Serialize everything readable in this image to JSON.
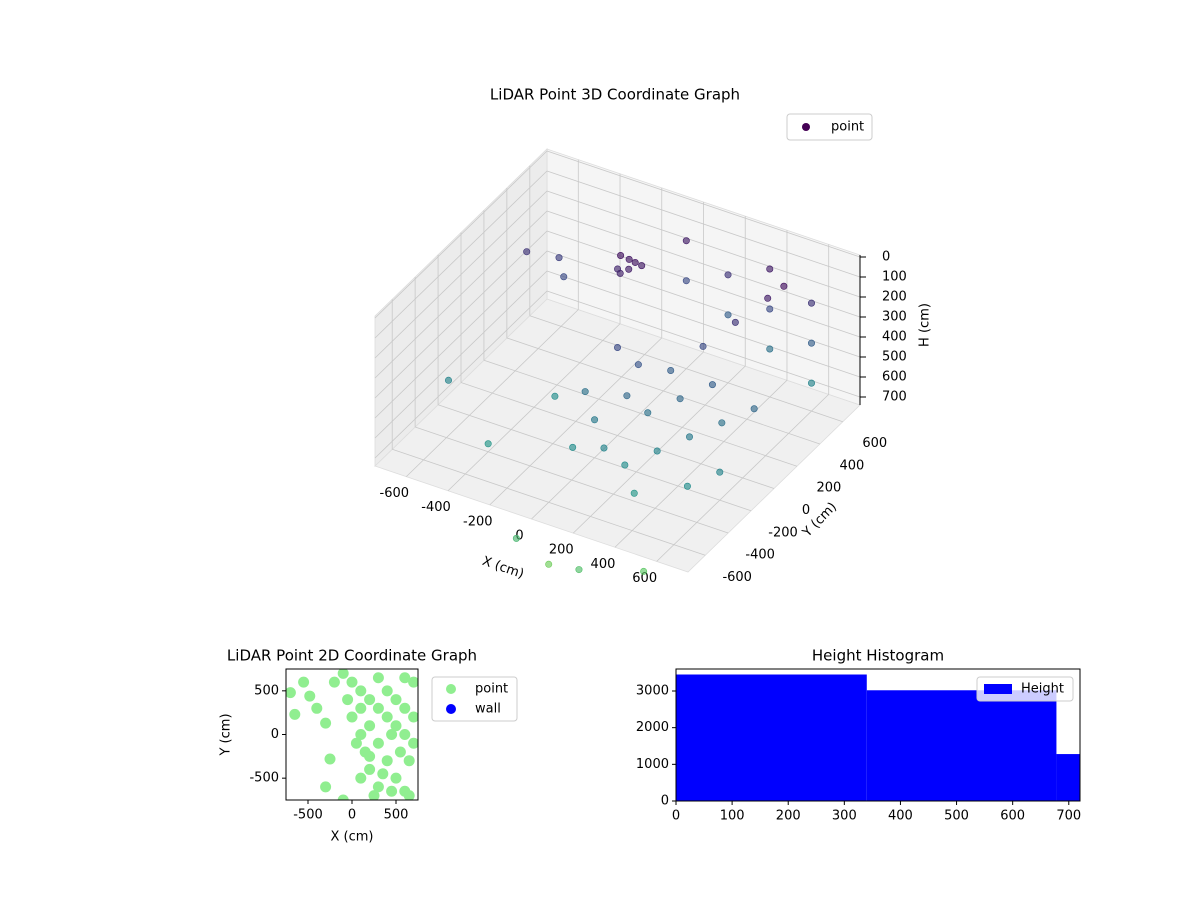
{
  "chart_data": [
    {
      "type": "scatter3d",
      "title": "LiDAR Point 3D Coordinate Graph",
      "xlabel": "X (cm)",
      "ylabel": "Y (cm)",
      "zlabel": "H (cm)",
      "xlim": [
        -750,
        750
      ],
      "ylim": [
        -750,
        750
      ],
      "zlim": [
        740,
        -10
      ],
      "xticks": [
        -600,
        -400,
        -200,
        0,
        200,
        400,
        600
      ],
      "yticks": [
        -600,
        -400,
        -200,
        0,
        200,
        400,
        600
      ],
      "zticks": [
        0,
        100,
        200,
        300,
        400,
        500,
        600,
        700
      ],
      "colormap": "viridis",
      "legend": "upper right",
      "grid": true,
      "series": [
        {
          "name": "point",
          "color": "#440154",
          "x": [
            0,
            0,
            200,
            200,
            400,
            400,
            400,
            600,
            600,
            600,
            -150,
            -120,
            -100,
            -80,
            -130,
            -60,
            -170,
            0,
            100,
            200,
            300,
            400,
            500,
            550,
            100,
            200,
            300,
            400,
            0,
            100,
            200,
            300,
            400,
            500,
            600,
            -100,
            -50,
            300,
            500,
            600,
            -600,
            -500,
            -450,
            -700,
            -400,
            -300,
            -100,
            200,
            400,
            0
          ],
          "y": [
            600,
            600,
            600,
            600,
            600,
            600,
            600,
            600,
            600,
            600,
            300,
            320,
            280,
            300,
            260,
            320,
            310,
            0,
            0,
            100,
            200,
            300,
            400,
            450,
            -100,
            -100,
            0,
            100,
            -200,
            -300,
            -300,
            -200,
            -100,
            0,
            100,
            -100,
            -300,
            -400,
            -300,
            -200,
            300,
            400,
            350,
            -200,
            -400,
            0,
            -700,
            -700,
            -500,
            -600
          ],
          "z": [
            100,
            300,
            200,
            400,
            100,
            300,
            500,
            200,
            400,
            600,
            60,
            80,
            100,
            70,
            120,
            90,
            140,
            300,
            350,
            400,
            300,
            200,
            100,
            50,
            450,
            500,
            450,
            400,
            550,
            600,
            650,
            600,
            550,
            500,
            450,
            500,
            650,
            700,
            650,
            600,
            200,
            250,
            300,
            600,
            700,
            650,
            900,
            950,
            1000,
            1050
          ]
        }
      ]
    },
    {
      "type": "scatter",
      "title": "LiDAR Point 2D Coordinate Graph",
      "xlabel": "X (cm)",
      "ylabel": "Y (cm)",
      "xlim": [
        -750,
        750
      ],
      "ylim": [
        -750,
        750
      ],
      "xticks": [
        -500,
        0,
        500
      ],
      "yticks": [
        -500,
        0,
        500
      ],
      "legend": "outside right",
      "series": [
        {
          "name": "point",
          "color": "#90ee90",
          "x": [
            -700,
            -650,
            -550,
            -480,
            -400,
            -300,
            -250,
            -200,
            -300,
            -100,
            -100,
            0,
            100,
            200,
            300,
            400,
            500,
            600,
            700,
            100,
            200,
            300,
            400,
            500,
            600,
            100,
            150,
            200,
            300,
            0,
            50,
            250,
            400,
            500,
            600,
            700,
            650,
            700,
            -50,
            350,
            450,
            550,
            300,
            600,
            200,
            100,
            450,
            650
          ],
          "y": [
            480,
            230,
            600,
            440,
            300,
            130,
            -280,
            600,
            -600,
            -750,
            700,
            600,
            500,
            400,
            300,
            200,
            100,
            0,
            -100,
            300,
            100,
            -100,
            -300,
            -500,
            -650,
            0,
            -200,
            -400,
            -600,
            200,
            -100,
            -700,
            500,
            400,
            300,
            600,
            -300,
            200,
            400,
            -450,
            0,
            -200,
            650,
            650,
            -250,
            -500,
            -650,
            -700
          ]
        },
        {
          "name": "wall",
          "color": "#0000ff",
          "x": [],
          "y": []
        }
      ]
    },
    {
      "type": "histogram",
      "title": "Height Histogram",
      "bins": [
        0,
        340,
        678,
        720
      ],
      "counts": [
        3450,
        3020,
        1280
      ],
      "xlim": [
        0,
        720
      ],
      "ylim": [
        0,
        3600
      ],
      "xticks": [
        0,
        100,
        200,
        300,
        400,
        500,
        600,
        700
      ],
      "yticks": [
        0,
        1000,
        2000,
        3000
      ],
      "series_name": "Height",
      "color": "#0000ff",
      "legend": "upper right"
    }
  ]
}
